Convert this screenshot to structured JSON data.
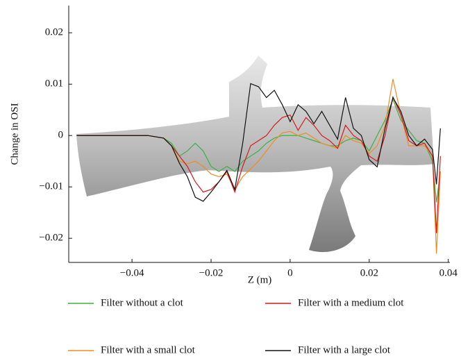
{
  "chart_data": {
    "type": "line",
    "xlabel": "Z (m)",
    "ylabel": "Change in OSI",
    "x": [
      -0.054,
      -0.04,
      -0.036,
      -0.032,
      -0.03,
      -0.028,
      -0.026,
      -0.024,
      -0.022,
      -0.02,
      -0.018,
      -0.016,
      -0.014,
      -0.012,
      -0.01,
      -0.008,
      -0.006,
      -0.004,
      -0.002,
      0,
      0.002,
      0.004,
      0.006,
      0.008,
      0.01,
      0.012,
      0.014,
      0.016,
      0.018,
      0.02,
      0.022,
      0.024,
      0.026,
      0.028,
      0.03,
      0.032,
      0.034,
      0.036,
      0.037,
      0.038
    ],
    "series": [
      {
        "name": "Filter without a clot",
        "color": "#3cb043",
        "values": [
          0,
          0,
          0,
          -0.0005,
          -0.0015,
          -0.004,
          -0.003,
          -0.0015,
          -0.003,
          -0.006,
          -0.007,
          -0.006,
          -0.007,
          -0.005,
          -0.004,
          -0.003,
          -0.0015,
          -0.0005,
          0,
          0,
          0,
          -0.0005,
          -0.001,
          -0.0015,
          -0.002,
          -0.002,
          -0.001,
          -0.0005,
          -0.001,
          -0.003,
          0,
          0.003,
          0.007,
          0.003,
          0.001,
          -0.001,
          -0.0015,
          -0.005,
          -0.013,
          -0.007
        ]
      },
      {
        "name": "Filter with a small clot",
        "color": "#f08c1e",
        "values": [
          0,
          0,
          0,
          -0.0005,
          -0.002,
          -0.005,
          -0.0055,
          -0.005,
          -0.006,
          -0.0075,
          -0.008,
          -0.0075,
          -0.0105,
          -0.008,
          -0.0065,
          -0.005,
          -0.003,
          -0.001,
          0.0005,
          0.0008,
          0,
          0.0005,
          -0.0005,
          -0.0015,
          -0.002,
          -0.0025,
          0,
          -0.001,
          -0.0015,
          -0.0035,
          -0.002,
          0.002,
          0.011,
          0.004,
          -0.002,
          -0.002,
          -0.002,
          -0.004,
          -0.023,
          -0.007
        ]
      },
      {
        "name": "Filter with a medium clot",
        "color": "#d7191c",
        "values": [
          0,
          0,
          0,
          -0.0005,
          -0.002,
          -0.004,
          -0.006,
          -0.009,
          -0.011,
          -0.0105,
          -0.009,
          -0.007,
          -0.011,
          -0.006,
          -0.002,
          -0.001,
          0,
          0.002,
          0.0035,
          0.004,
          0.001,
          0.0035,
          0.002,
          0,
          -0.001,
          -0.0025,
          0.002,
          0,
          -0.001,
          -0.004,
          -0.005,
          0,
          0.0075,
          0.004,
          -0.001,
          -0.002,
          -0.0015,
          -0.004,
          -0.019,
          -0.004
        ]
      },
      {
        "name": "Filter with a large clot",
        "color": "#111111",
        "values": [
          0,
          0,
          0,
          -0.0005,
          -0.002,
          -0.0054,
          -0.008,
          -0.012,
          -0.0128,
          -0.011,
          -0.009,
          -0.0068,
          -0.0105,
          -0.0015,
          0.0101,
          0.0095,
          0.0074,
          0.0088,
          0.006,
          0.0027,
          0.006,
          0.0047,
          0.0023,
          0.0047,
          0.002,
          -0.0007,
          0.0074,
          0.0014,
          0,
          -0.0047,
          -0.0061,
          0.0014,
          0.0074,
          0.0047,
          0,
          -0.002,
          -0.0007,
          -0.0027,
          -0.0095,
          0.0014
        ]
      }
    ],
    "xlim": [
      -0.056,
      0.0404
    ],
    "ylim": [
      -0.0247,
      0.0253
    ],
    "xticks": [
      {
        "value": -0.04,
        "label": "−0.04"
      },
      {
        "value": -0.02,
        "label": "−0.02"
      },
      0,
      0.02,
      0.04
    ],
    "yticks": [
      {
        "value": -0.02,
        "label": "−0.02"
      },
      {
        "value": -0.01,
        "label": "−0.01"
      },
      0,
      0.01,
      0.02
    ]
  }
}
